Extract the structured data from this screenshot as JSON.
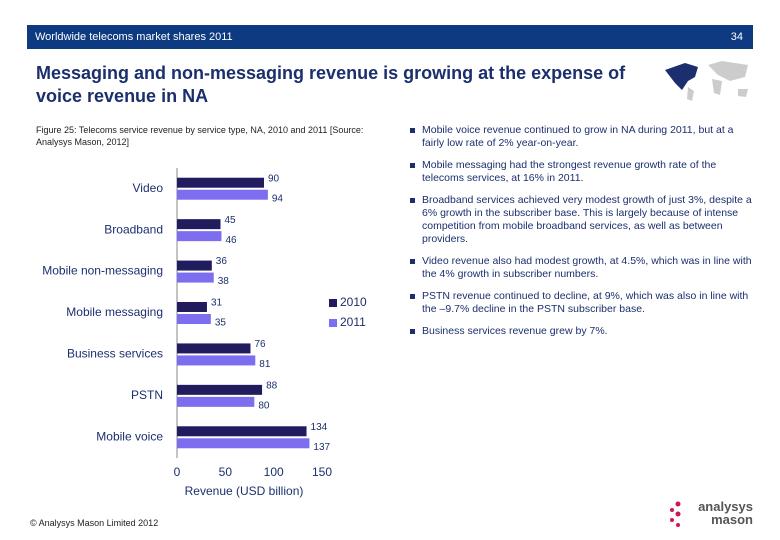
{
  "header": {
    "section": "Worldwide telecoms market shares 2011",
    "page": "34"
  },
  "title": "Messaging and non-messaging revenue is growing at the expense of voice revenue in NA",
  "figure_caption": "Figure 25: Telecoms service revenue by service type, NA, 2010 and 2011 [Source: Analysys Mason, 2012]",
  "chart_data": {
    "type": "hbar",
    "xlabel": "Revenue (USD billion)",
    "categories": [
      "Video",
      "Broadband",
      "Mobile non-messaging",
      "Mobile messaging",
      "Business services",
      "PSTN",
      "Mobile voice"
    ],
    "series": [
      {
        "name": "2010",
        "color": "#211c5e",
        "values": [
          90,
          45,
          36,
          31,
          76,
          88,
          134
        ]
      },
      {
        "name": "2011",
        "color": "#7d6ef0",
        "values": [
          94,
          46,
          38,
          35,
          81,
          80,
          137
        ]
      }
    ],
    "xlim": [
      0,
      150
    ],
    "xticks": [
      0,
      50,
      100,
      150
    ],
    "grid": false,
    "legend": "right"
  },
  "bullets": [
    "Mobile voice revenue continued to grow in NA during 2011, but at a fairly low rate of 2% year-on-year.",
    "Mobile messaging had the strongest revenue growth rate of the telecoms services, at 16% in 2011.",
    "Broadband services achieved very modest growth of just 3%, despite a 6% growth in the subscriber base. This is largely because of intense competition from mobile broadband services, as well as between providers.",
    "Video revenue also had modest growth, at 4.5%, which was in line with the 4% growth in subscriber numbers.",
    "PSTN revenue continued to decline, at 9%, which was also in line with the –9.7% decline in the PSTN subscriber base.",
    "Business services revenue grew by 7%."
  ],
  "footer": "© Analysys Mason Limited 2012",
  "logo": {
    "line1": "analysys",
    "line2": "mason"
  }
}
